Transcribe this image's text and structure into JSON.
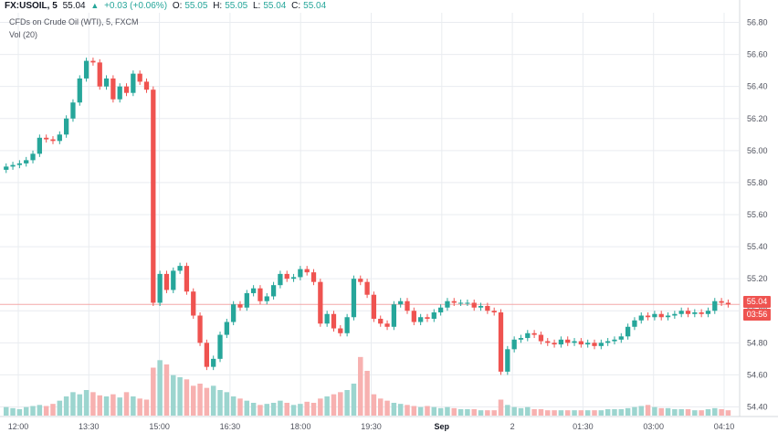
{
  "header": {
    "symbol": "FX:USOIL, 5",
    "last": "55.04",
    "change": "+0.03 (+0.06%)",
    "o_label": "O:",
    "o_val": "55.05",
    "h_label": "H:",
    "h_val": "55.05",
    "l_label": "L:",
    "l_val": "55.04",
    "c_label": "C:",
    "c_val": "55.04"
  },
  "subtitle": "CFDs on Crude Oil (WTI), 5, FXCM",
  "vol_label": "Vol (20)",
  "price_tag": {
    "value": "55.04",
    "countdown": "03:56"
  },
  "colors": {
    "up": "#26a69a",
    "down": "#ef5350",
    "grid": "#e9ecf0",
    "last_line": "#f3a8a8",
    "axis_text": "#50535e"
  },
  "chart_data": {
    "type": "candlestick",
    "y_ticks": [
      "56.80",
      "56.60",
      "56.40",
      "56.20",
      "56.00",
      "55.80",
      "55.60",
      "55.40",
      "55.20",
      "55.00",
      "54.80",
      "54.60",
      "54.40"
    ],
    "ylim": [
      54.34,
      56.86
    ],
    "x_ticks": [
      "12:00",
      "13:30",
      "15:00",
      "16:30",
      "18:00",
      "19:30",
      "Sep",
      "2",
      "01:30",
      "03:00",
      "04:10"
    ],
    "last_price": 55.04,
    "closes": [
      55.9,
      55.91,
      55.92,
      55.94,
      55.98,
      56.08,
      56.07,
      56.06,
      56.1,
      56.2,
      56.3,
      56.45,
      56.56,
      56.55,
      56.4,
      56.45,
      56.32,
      56.4,
      56.36,
      56.48,
      56.43,
      56.38,
      55.05,
      55.23,
      55.13,
      55.25,
      55.28,
      55.12,
      54.97,
      54.8,
      54.65,
      54.7,
      54.85,
      54.93,
      55.04,
      55.02,
      55.11,
      55.14,
      55.06,
      55.09,
      55.16,
      55.23,
      55.2,
      55.21,
      55.26,
      55.24,
      55.18,
      54.92,
      54.98,
      54.89,
      54.86,
      54.96,
      55.2,
      55.18,
      55.1,
      54.95,
      54.92,
      54.9,
      55.04,
      55.06,
      55.0,
      54.93,
      54.96,
      54.95,
      54.99,
      55.02,
      55.06,
      55.05,
      55.05,
      55.05,
      55.02,
      55.03,
      55.0,
      54.99,
      54.62,
      54.76,
      54.82,
      54.83,
      54.86,
      54.85,
      54.81,
      54.8,
      54.79,
      54.82,
      54.8,
      54.81,
      54.79,
      54.8,
      54.78,
      54.8,
      54.81,
      54.82,
      54.84,
      54.9,
      54.94,
      54.97,
      54.96,
      54.98,
      54.96,
      54.97,
      54.98,
      55.0,
      54.98,
      54.99,
      54.98,
      55.0,
      55.06,
      55.05,
      55.04
    ],
    "volume": [
      8,
      7,
      6,
      8,
      9,
      10,
      9,
      11,
      14,
      18,
      22,
      20,
      24,
      22,
      19,
      18,
      20,
      17,
      22,
      18,
      16,
      15,
      45,
      52,
      48,
      38,
      36,
      34,
      28,
      30,
      26,
      28,
      24,
      22,
      18,
      16,
      14,
      12,
      10,
      11,
      12,
      14,
      12,
      10,
      11,
      13,
      12,
      16,
      18,
      20,
      22,
      24,
      30,
      55,
      42,
      20,
      16,
      14,
      12,
      11,
      10,
      9,
      8,
      9,
      8,
      7,
      8,
      7,
      6,
      6,
      6,
      5,
      5,
      5,
      15,
      10,
      8,
      7,
      8,
      6,
      6,
      5,
      5,
      5,
      5,
      5,
      5,
      5,
      5,
      5,
      6,
      6,
      6,
      7,
      8,
      9,
      10,
      8,
      7,
      7,
      6,
      6,
      6,
      5,
      5,
      6,
      7,
      6,
      5
    ]
  }
}
